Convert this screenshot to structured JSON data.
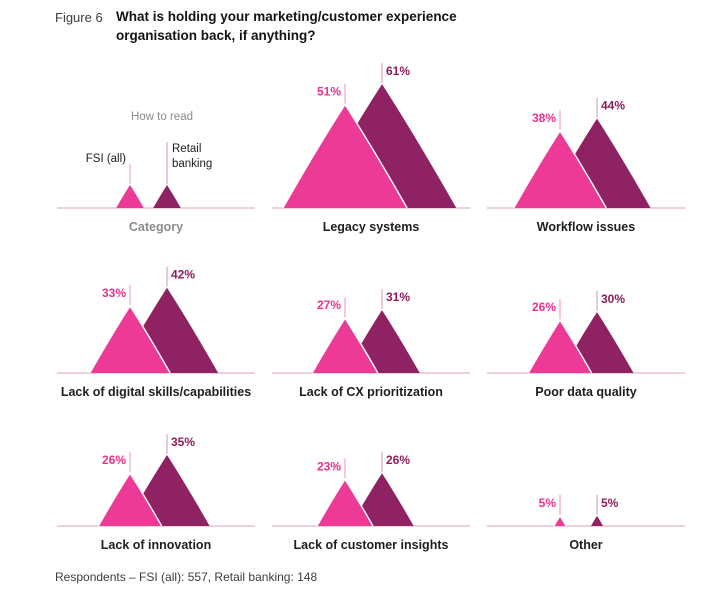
{
  "figure": {
    "label": "Figure 6",
    "title": "What is holding your marketing/customer experience organisation back, if anything?"
  },
  "legend": {
    "heading": "How to read",
    "fsi_label": "FSI (all)",
    "retail_label": "Retail banking",
    "category_label": "Category"
  },
  "footer": {
    "text": "Respondents – FSI (all): 557, Retail banking: 148"
  },
  "colors": {
    "fsi_fill": "#EC3A96",
    "retail_fill": "#8F2263",
    "fsi_value_text": "#E8338F",
    "retail_value_text": "#8E1D5B",
    "baseline": "#D5A3B7",
    "fsi_pointer": "#EE93C2",
    "retail_pointer": "#C79EB1",
    "overlap_edge": "#FFFFFF"
  },
  "chart_data": {
    "type": "bar",
    "style": "overlapping-triangle-peaks",
    "unit": "%",
    "title": "What is holding your marketing/customer experience organisation back, if anything?",
    "categories": [
      "Legacy systems",
      "Workflow issues",
      "Lack of digital skills/capabilities",
      "Lack of CX prioritization",
      "Poor data quality",
      "Lack of innovation",
      "Lack of customer insights",
      "Other"
    ],
    "series": [
      {
        "name": "FSI (all)",
        "respondents": 557,
        "values": [
          51,
          38,
          33,
          27,
          26,
          26,
          23,
          5
        ]
      },
      {
        "name": "Retail banking",
        "respondents": 148,
        "values": [
          61,
          44,
          42,
          31,
          30,
          35,
          26,
          5
        ]
      }
    ],
    "value_range": [
      0,
      61
    ],
    "legend_position": "top-left",
    "grid": false
  }
}
